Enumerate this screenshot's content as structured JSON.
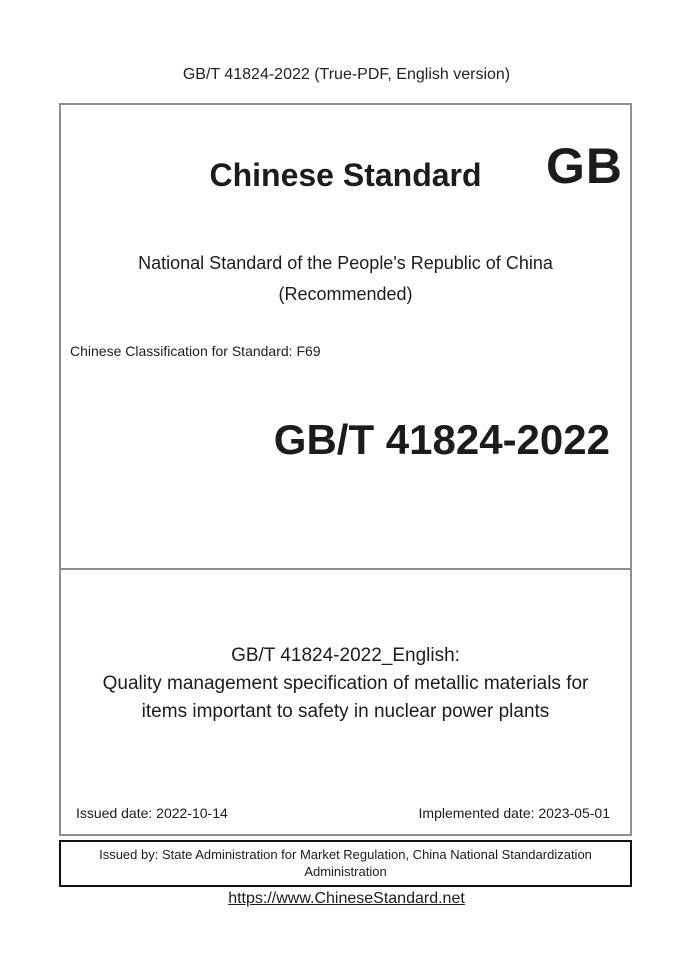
{
  "header": {
    "text": "GB/T 41824-2022 (True-PDF, English version)"
  },
  "cover": {
    "brand": "Chinese Standard",
    "logo": "GB",
    "national_line1": "National Standard of the People's Republic of China",
    "national_line2": "(Recommended)",
    "classification": "Chinese Classification for Standard: F69",
    "standard_number": "GB/T 41824-2022"
  },
  "title_block": {
    "line1": "GB/T 41824-2022_English:",
    "line2": "Quality management specification of metallic materials for",
    "line3": "items important to safety in nuclear power plants"
  },
  "dates": {
    "issued": "Issued date: 2022-10-14",
    "implemented": "Implemented date: 2023-05-01"
  },
  "issuer": {
    "text": "Issued by: State Administration for Market Regulation, China National Standardization Administration"
  },
  "footer": {
    "link": "https://www.ChineseStandard.net"
  },
  "colors": {
    "border_gray": "#8f8f8f",
    "border_black": "#111111",
    "text": "#1c1c1c"
  }
}
